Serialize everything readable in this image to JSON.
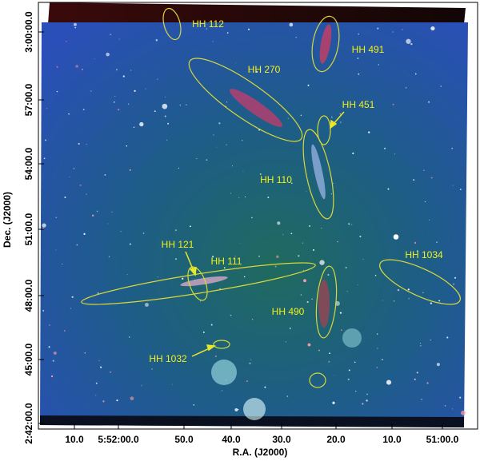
{
  "axes": {
    "x_label": "R.A. (J2000)",
    "y_label": "Dec. (J2000)",
    "x_ticks": [
      "10.0",
      "5:52:00.0",
      "50.0",
      "40.0",
      "30.0",
      "20.0",
      "10.0",
      "51:00.0"
    ],
    "y_ticks": [
      "3:00:00.0",
      "57:00.0",
      "54:00.0",
      "51:00.0",
      "48:00.0",
      "45:00.0",
      "2:42:00.0"
    ]
  },
  "objects": [
    {
      "label": "HH 112"
    },
    {
      "label": "HH 491"
    },
    {
      "label": "HH 270"
    },
    {
      "label": "HH 451"
    },
    {
      "label": "HH 110"
    },
    {
      "label": "HH 121"
    },
    {
      "label": "HH 111"
    },
    {
      "label": "HH 1034"
    },
    {
      "label": "HH 490"
    },
    {
      "label": "HH 1032"
    }
  ]
}
